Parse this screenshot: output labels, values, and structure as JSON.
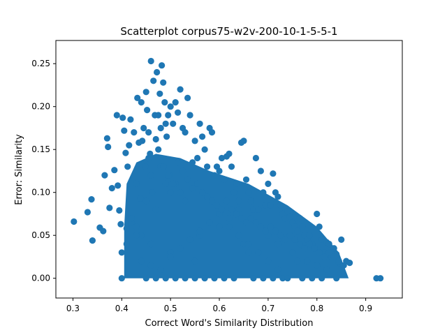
{
  "chart_data": {
    "type": "scatter",
    "title": "Scatterplot corpus75-w2v-200-10-1-5-5-1",
    "xlabel": "Correct Word's Similarity Distribution",
    "ylabel": "Error: Similarity",
    "xlim": [
      0.265,
      0.975
    ],
    "ylim": [
      -0.023,
      0.277
    ],
    "xticks": [
      {
        "value": 0.3,
        "label": "0.3"
      },
      {
        "value": 0.4,
        "label": "0.4"
      },
      {
        "value": 0.5,
        "label": "0.5"
      },
      {
        "value": 0.6,
        "label": "0.6"
      },
      {
        "value": 0.7,
        "label": "0.7"
      },
      {
        "value": 0.8,
        "label": "0.8"
      },
      {
        "value": 0.9,
        "label": "0.9"
      }
    ],
    "yticks": [
      {
        "value": 0.0,
        "label": "0.00"
      },
      {
        "value": 0.05,
        "label": "0.05"
      },
      {
        "value": 0.1,
        "label": "0.10"
      },
      {
        "value": 0.15,
        "label": "0.15"
      },
      {
        "value": 0.2,
        "label": "0.20"
      },
      {
        "value": 0.25,
        "label": "0.25"
      }
    ],
    "grid": false,
    "marker_color": "#1f77b4",
    "series": [
      {
        "name": "points",
        "x": [
          0.302,
          0.33,
          0.34,
          0.338,
          0.355,
          0.362,
          0.365,
          0.37,
          0.372,
          0.375,
          0.38,
          0.385,
          0.39,
          0.392,
          0.395,
          0.398,
          0.4,
          0.402,
          0.405,
          0.408,
          0.41,
          0.412,
          0.415,
          0.418,
          0.42,
          0.425,
          0.43,
          0.432,
          0.435,
          0.438,
          0.44,
          0.442,
          0.445,
          0.448,
          0.45,
          0.452,
          0.455,
          0.458,
          0.46,
          0.462,
          0.465,
          0.468,
          0.47,
          0.472,
          0.475,
          0.478,
          0.48,
          0.482,
          0.485,
          0.488,
          0.49,
          0.492,
          0.495,
          0.498,
          0.5,
          0.505,
          0.51,
          0.515,
          0.52,
          0.525,
          0.53,
          0.535,
          0.54,
          0.545,
          0.55,
          0.555,
          0.56,
          0.565,
          0.57,
          0.575,
          0.58,
          0.585,
          0.59,
          0.595,
          0.6,
          0.605,
          0.61,
          0.615,
          0.62,
          0.625,
          0.63,
          0.635,
          0.64,
          0.645,
          0.65,
          0.655,
          0.66,
          0.665,
          0.67,
          0.675,
          0.68,
          0.685,
          0.69,
          0.695,
          0.7,
          0.705,
          0.71,
          0.715,
          0.72,
          0.725,
          0.73,
          0.735,
          0.74,
          0.745,
          0.75,
          0.755,
          0.76,
          0.765,
          0.77,
          0.775,
          0.78,
          0.785,
          0.79,
          0.795,
          0.8,
          0.805,
          0.81,
          0.815,
          0.82,
          0.825,
          0.83,
          0.835,
          0.84,
          0.845,
          0.85,
          0.86,
          0.867,
          0.922,
          0.93,
          0.46,
          0.48,
          0.49,
          0.5,
          0.45,
          0.47,
          0.51,
          0.52,
          0.53,
          0.43,
          0.44,
          0.46,
          0.42,
          0.5,
          0.55,
          0.56,
          0.6,
          0.62,
          0.64,
          0.65,
          0.66,
          0.7,
          0.72,
          0.75,
          0.76,
          0.78,
          0.8,
          0.82,
          0.45,
          0.47,
          0.49,
          0.51,
          0.53,
          0.55,
          0.57,
          0.59,
          0.61,
          0.63,
          0.67,
          0.69,
          0.71,
          0.73,
          0.74,
          0.77,
          0.79,
          0.81,
          0.84,
          0.4,
          0.41,
          0.43,
          0.44,
          0.46,
          0.48,
          0.5,
          0.52,
          0.54,
          0.56,
          0.58,
          0.6,
          0.62,
          0.64,
          0.66,
          0.68,
          0.7,
          0.72,
          0.455,
          0.475,
          0.485,
          0.495,
          0.505,
          0.515,
          0.525,
          0.535,
          0.545,
          0.555,
          0.565,
          0.575,
          0.585,
          0.595,
          0.605,
          0.615,
          0.625,
          0.635,
          0.645,
          0.655,
          0.665,
          0.675,
          0.685,
          0.695,
          0.705,
          0.715,
          0.725,
          0.735,
          0.745,
          0.755,
          0.765,
          0.775,
          0.785,
          0.795,
          0.805,
          0.815,
          0.825,
          0.835,
          0.845,
          0.855
        ],
        "y": [
          0.066,
          0.077,
          0.044,
          0.092,
          0.059,
          0.055,
          0.12,
          0.163,
          0.153,
          0.082,
          0.105,
          0.126,
          0.19,
          0.108,
          0.079,
          0.063,
          0.0,
          0.187,
          0.172,
          0.146,
          0.058,
          0.13,
          0.155,
          0.185,
          0.065,
          0.17,
          0.11,
          0.21,
          0.158,
          0.093,
          0.205,
          0.16,
          0.175,
          0.13,
          0.217,
          0.196,
          0.17,
          0.145,
          0.253,
          0.1,
          0.23,
          0.19,
          0.162,
          0.24,
          0.19,
          0.215,
          0.175,
          0.248,
          0.228,
          0.205,
          0.18,
          0.165,
          0.19,
          0.12,
          0.2,
          0.18,
          0.205,
          0.193,
          0.22,
          0.175,
          0.17,
          0.21,
          0.19,
          0.135,
          0.16,
          0.14,
          0.18,
          0.165,
          0.15,
          0.13,
          0.175,
          0.17,
          0.12,
          0.13,
          0.125,
          0.14,
          0.115,
          0.142,
          0.145,
          0.13,
          0.1,
          0.11,
          0.09,
          0.158,
          0.16,
          0.115,
          0.1,
          0.09,
          0.08,
          0.14,
          0.08,
          0.125,
          0.1,
          0.085,
          0.11,
          0.085,
          0.122,
          0.1,
          0.095,
          0.085,
          0.075,
          0.07,
          0.078,
          0.072,
          0.065,
          0.06,
          0.055,
          0.07,
          0.06,
          0.05,
          0.045,
          0.05,
          0.04,
          0.035,
          0.075,
          0.06,
          0.045,
          0.03,
          0.042,
          0.04,
          0.025,
          0.035,
          0.028,
          0.018,
          0.045,
          0.02,
          0.018,
          0.0,
          0.0,
          0.12,
          0.13,
          0.11,
          0.1,
          0.09,
          0.08,
          0.11,
          0.1,
          0.09,
          0.06,
          0.05,
          0.04,
          0.07,
          0.03,
          0.02,
          0.05,
          0.06,
          0.07,
          0.08,
          0.04,
          0.03,
          0.05,
          0.04,
          0.03,
          0.02,
          0.02,
          0.015,
          0.01,
          0.0,
          0.0,
          0.0,
          0.0,
          0.0,
          0.0,
          0.0,
          0.0,
          0.0,
          0.0,
          0.0,
          0.0,
          0.0,
          0.0,
          0.0,
          0.0,
          0.0,
          0.0,
          0.0,
          0.03,
          0.04,
          0.05,
          0.02,
          0.015,
          0.01,
          0.025,
          0.035,
          0.045,
          0.055,
          0.065,
          0.075,
          0.06,
          0.05,
          0.04,
          0.03,
          0.02,
          0.01,
          0.14,
          0.15,
          0.13,
          0.12,
          0.11,
          0.135,
          0.125,
          0.115,
          0.105,
          0.11,
          0.1,
          0.095,
          0.09,
          0.085,
          0.08,
          0.09,
          0.08,
          0.075,
          0.07,
          0.065,
          0.07,
          0.065,
          0.06,
          0.055,
          0.06,
          0.055,
          0.05,
          0.045,
          0.05,
          0.045,
          0.04,
          0.035,
          0.04,
          0.035,
          0.03,
          0.025,
          0.03,
          0.025,
          0.02,
          0.015
        ]
      }
    ]
  }
}
